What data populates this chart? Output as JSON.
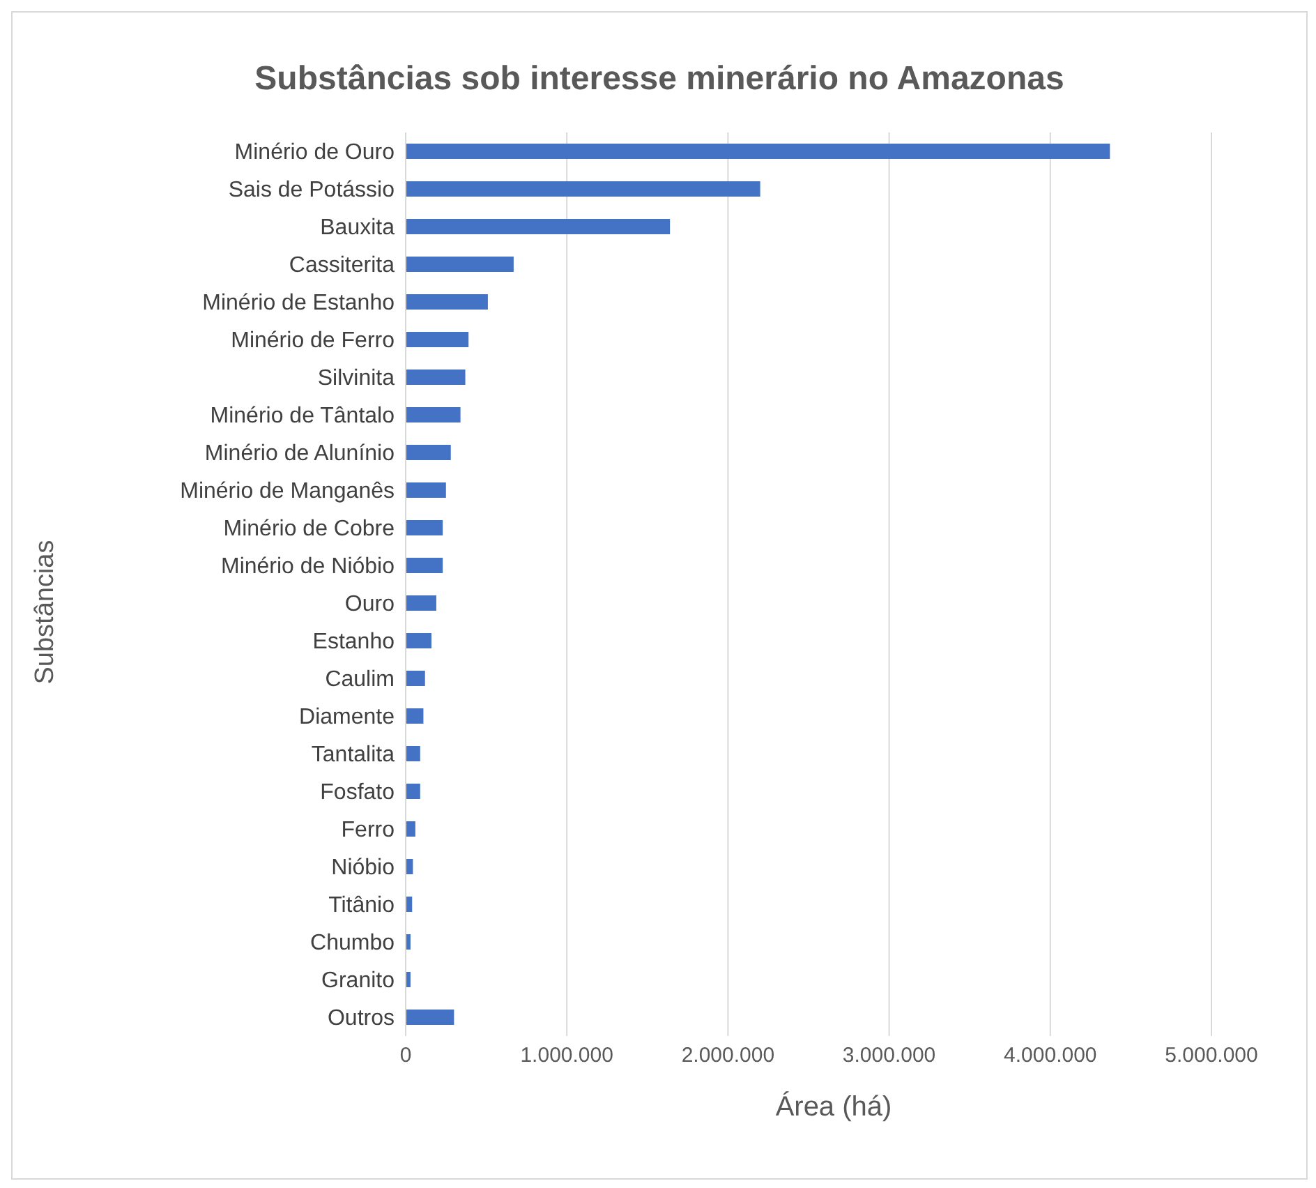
{
  "chart_data": {
    "type": "bar",
    "orientation": "horizontal",
    "title": "Substâncias sob interesse minerário no Amazonas",
    "xlabel": "Área (há)",
    "ylabel": "Substâncias",
    "categories": [
      "Minério de Ouro",
      "Sais de Potássio",
      "Bauxita",
      "Cassiterita",
      "Minério de Estanho",
      "Minério de Ferro",
      "Silvinita",
      "Minério de Tântalo",
      "Minério de Alunínio",
      "Minério de Manganês",
      "Minério de Cobre",
      "Minério de Nióbio",
      "Ouro",
      "Estanho",
      "Caulim",
      "Diamente",
      "Tantalita",
      "Fosfato",
      "Ferro",
      "Nióbio",
      "Titânio",
      "Chumbo",
      "Granito",
      "Outros"
    ],
    "values": [
      4370000,
      2200000,
      1640000,
      670000,
      510000,
      390000,
      370000,
      340000,
      280000,
      250000,
      230000,
      230000,
      190000,
      160000,
      120000,
      110000,
      90000,
      90000,
      60000,
      45000,
      40000,
      30000,
      30000,
      300000
    ],
    "color": "#4472c4",
    "xlim": [
      0,
      5000000
    ],
    "xticks": [
      0,
      {
        "value": 1000000,
        "label": "1.000.000"
      },
      {
        "value": 2000000,
        "label": "2.000.000"
      },
      {
        "value": 3000000,
        "label": "3.000.000"
      },
      {
        "value": 4000000,
        "label": "4.000.000"
      },
      {
        "value": 5000000,
        "label": "5.000.000"
      }
    ],
    "grid": "x",
    "legend": false
  }
}
